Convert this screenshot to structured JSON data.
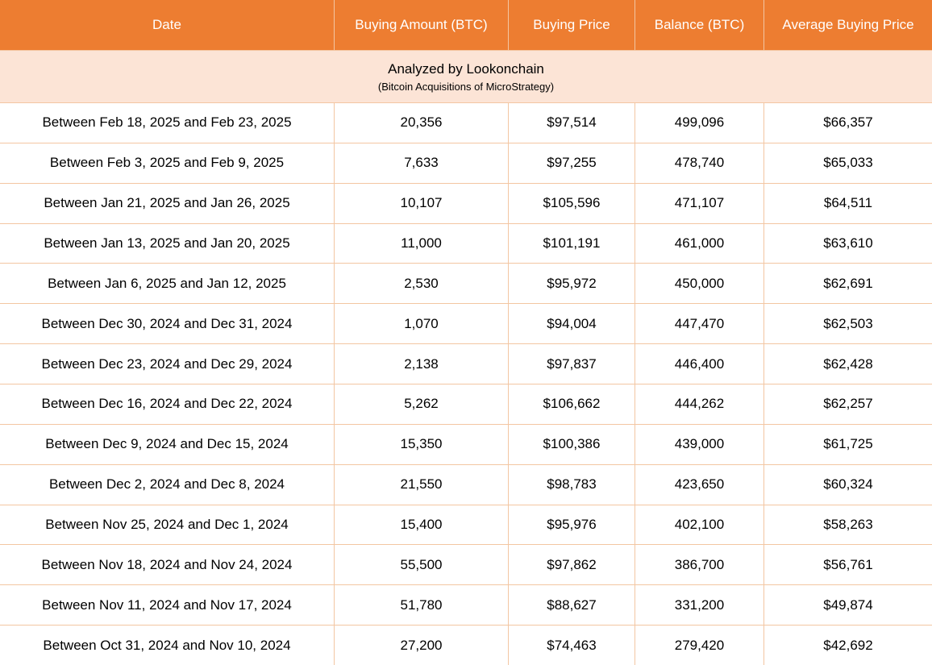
{
  "colors": {
    "header_bg": "#ED7D31",
    "header_text": "#FFFFFF",
    "subtitle_bg": "#FCE4D6",
    "border": "#F3C6A2",
    "row_bg": "#FFFFFF",
    "body_text": "#000000"
  },
  "chart_data": {
    "type": "table",
    "title": "Analyzed by Lookonchain",
    "subtitle": "(Bitcoin Acquisitions of MicroStrategy)",
    "columns": [
      "Date",
      "Buying Amount (BTC)",
      "Buying Price",
      "Balance (BTC)",
      "Average Buying Price"
    ],
    "rows": [
      [
        "Between Feb 18, 2025 and Feb 23, 2025",
        "20,356",
        "$97,514",
        "499,096",
        "$66,357"
      ],
      [
        "Between Feb 3, 2025 and Feb 9, 2025",
        "7,633",
        "$97,255",
        "478,740",
        "$65,033"
      ],
      [
        "Between Jan 21, 2025 and Jan 26, 2025",
        "10,107",
        "$105,596",
        "471,107",
        "$64,511"
      ],
      [
        "Between Jan 13, 2025 and Jan 20, 2025",
        "11,000",
        "$101,191",
        "461,000",
        "$63,610"
      ],
      [
        "Between Jan 6, 2025 and Jan 12, 2025",
        "2,530",
        "$95,972",
        "450,000",
        "$62,691"
      ],
      [
        "Between Dec 30, 2024 and Dec 31, 2024",
        "1,070",
        "$94,004",
        "447,470",
        "$62,503"
      ],
      [
        "Between Dec 23, 2024 and Dec 29, 2024",
        "2,138",
        "$97,837",
        "446,400",
        "$62,428"
      ],
      [
        "Between Dec 16, 2024 and Dec 22, 2024",
        "5,262",
        "$106,662",
        "444,262",
        "$62,257"
      ],
      [
        "Between Dec 9, 2024 and Dec 15, 2024",
        "15,350",
        "$100,386",
        "439,000",
        "$61,725"
      ],
      [
        "Between Dec 2, 2024 and Dec 8, 2024",
        "21,550",
        "$98,783",
        "423,650",
        "$60,324"
      ],
      [
        "Between Nov 25, 2024 and Dec 1, 2024",
        "15,400",
        "$95,976",
        "402,100",
        "$58,263"
      ],
      [
        "Between Nov 18, 2024 and Nov 24, 2024",
        "55,500",
        "$97,862",
        "386,700",
        "$56,761"
      ],
      [
        "Between Nov 11, 2024 and Nov 17, 2024",
        "51,780",
        "$88,627",
        "331,200",
        "$49,874"
      ],
      [
        "Between Oct 31, 2024 and Nov 10, 2024",
        "27,200",
        "$74,463",
        "279,420",
        "$42,692"
      ]
    ]
  }
}
